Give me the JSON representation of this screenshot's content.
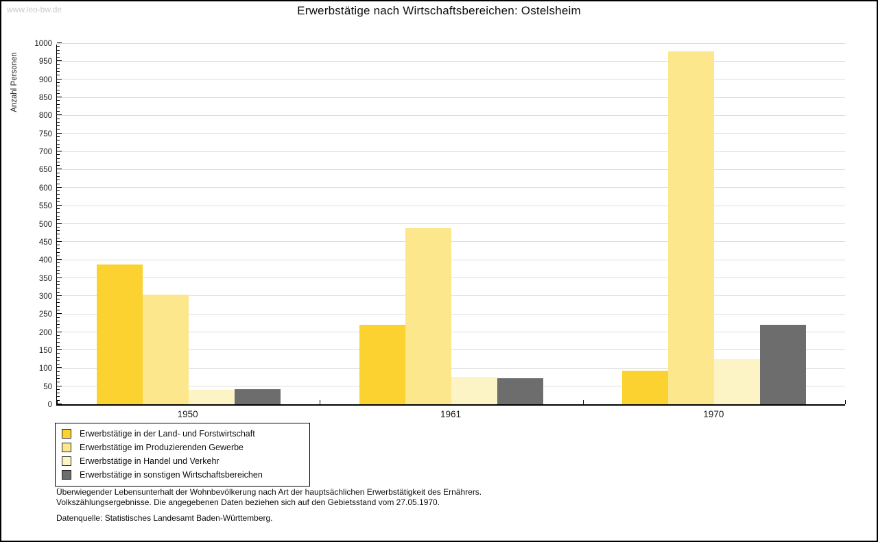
{
  "watermark": "www.leo-bw.de",
  "title": "Erwerbstätige nach Wirtschaftsbereichen: Ostelsheim",
  "chart_data": {
    "type": "bar",
    "title": "Erwerbstätige nach Wirtschaftsbereichen: Ostelsheim",
    "xlabel": "",
    "ylabel": "Anzahl Personen",
    "ylim": [
      0,
      1000
    ],
    "ytick_step": 50,
    "ytick_minor_step": 10,
    "grid": true,
    "legend_position": "bottom-left",
    "categories": [
      "1950",
      "1961",
      "1970"
    ],
    "series": [
      {
        "name": "Erwerbstätige in der Land- und Forstwirtschaft",
        "color": "#FBD230",
        "values": [
          387,
          220,
          93
        ]
      },
      {
        "name": "Erwerbstätige im Produzierenden Gewerbe",
        "color": "#FCE78C",
        "values": [
          304,
          488,
          977
        ]
      },
      {
        "name": "Erwerbstätige in Handel und Verkehr",
        "color": "#FCF4C4",
        "values": [
          40,
          75,
          126
        ]
      },
      {
        "name": "Erwerbstätige in sonstigen Wirtschaftsbereichen",
        "color": "#6D6D6D",
        "values": [
          42,
          73,
          220
        ]
      }
    ],
    "gridline_color": "#DCDCDC"
  },
  "footnotes": [
    "Überwiegender Lebensunterhalt der Wohnbevölkerung nach Art der hauptsächlichen Erwerbstätigkeit des Ernährers.",
    "Volkszählungsergebnisse. Die angegebenen Daten beziehen sich auf den Gebietsstand vom 27.05.1970."
  ],
  "source": "Datenquelle: Statistisches Landesamt Baden-Württemberg."
}
